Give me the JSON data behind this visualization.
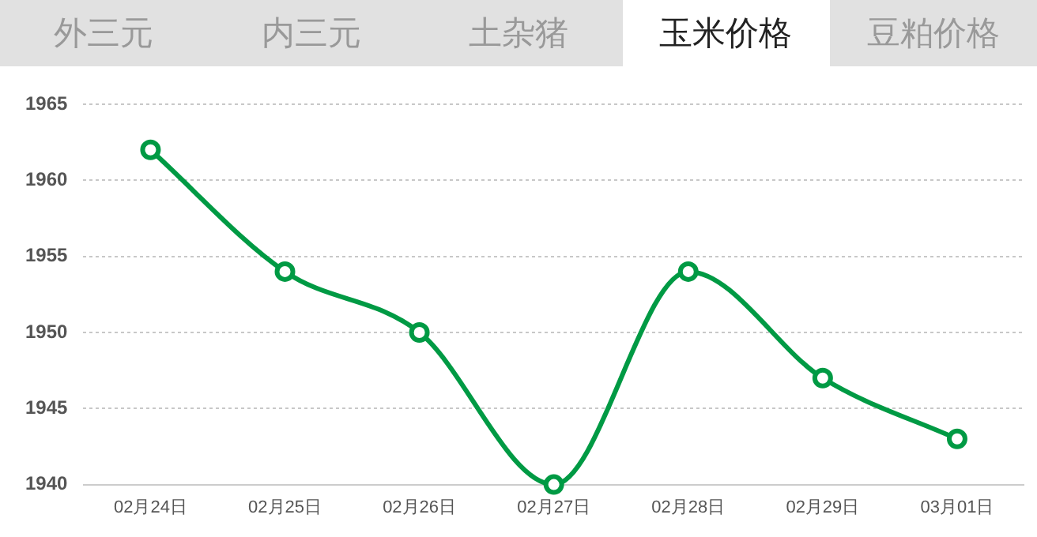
{
  "chart_data": {
    "type": "line",
    "annotations": [
      "外三元",
      "内三元",
      "土杂猪",
      "玉米价格",
      "豆粕价格"
    ],
    "categories": [
      "02月24日",
      "02月25日",
      "02月26日",
      "02月27日",
      "02月28日",
      "02月29日",
      "03月01日"
    ],
    "series": [
      {
        "color": "#009a44",
        "values": [
          1962,
          1954,
          1950,
          1940,
          1954,
          1947,
          1943
        ]
      }
    ],
    "ylim": [
      1940,
      1965
    ],
    "yticks": [
      1940,
      1945,
      1950,
      1955,
      1960,
      1965
    ],
    "grid": "y",
    "legend": false,
    "marker": "circle",
    "line_style": "solid"
  }
}
